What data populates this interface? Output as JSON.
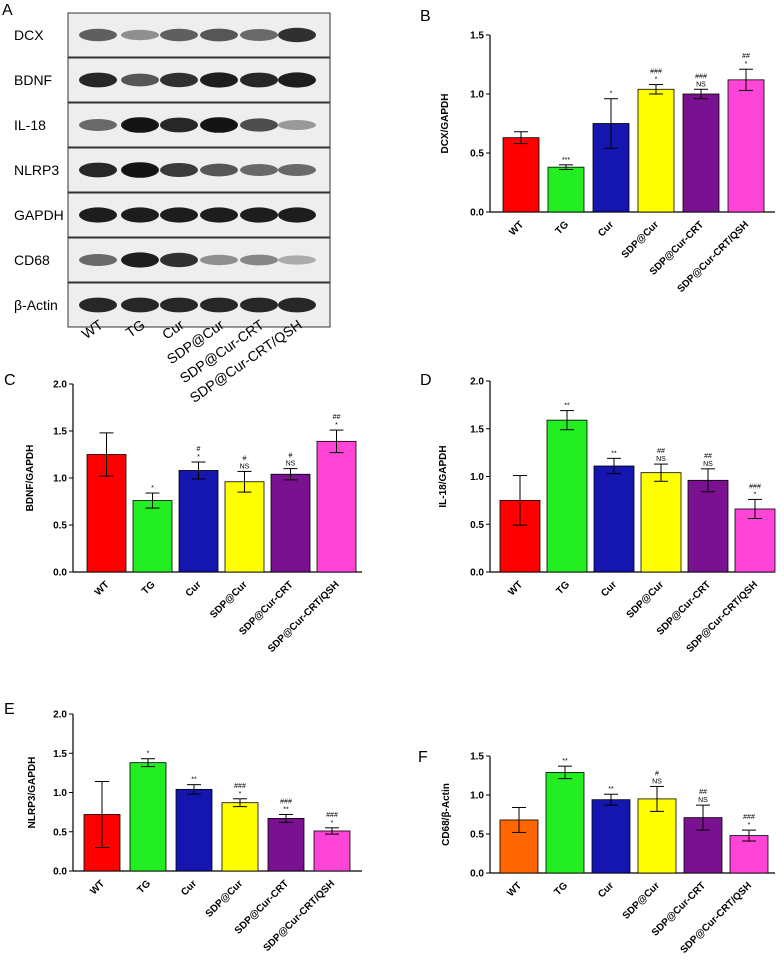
{
  "blot": {
    "panel_label": "A",
    "rows": [
      {
        "label": "DCX",
        "intensity": [
          0.55,
          0.3,
          0.55,
          0.6,
          0.5,
          0.8
        ]
      },
      {
        "label": "BDNF",
        "intensity": [
          0.85,
          0.6,
          0.8,
          0.9,
          0.85,
          0.9
        ]
      },
      {
        "label": "IL-18",
        "intensity": [
          0.5,
          0.95,
          0.85,
          0.95,
          0.65,
          0.25
        ]
      },
      {
        "label": "NLRP3",
        "intensity": [
          0.85,
          0.95,
          0.75,
          0.6,
          0.5,
          0.5
        ]
      },
      {
        "label": "GAPDH",
        "intensity": [
          0.9,
          0.9,
          0.9,
          0.9,
          0.9,
          0.9
        ]
      },
      {
        "label": "CD68",
        "intensity": [
          0.5,
          0.9,
          0.8,
          0.3,
          0.35,
          0.15
        ]
      },
      {
        "label": "β-Actin",
        "intensity": [
          0.85,
          0.85,
          0.85,
          0.85,
          0.85,
          0.85
        ]
      }
    ],
    "categories": [
      "WT",
      "TG",
      "Cur",
      "SDP@Cur",
      "SDP@Cur-CRT",
      "SDP@Cur-CRT/QSH"
    ]
  },
  "chart_data": [
    {
      "panel_label": "B",
      "type": "bar",
      "ylabel": "DCX/GAPDH",
      "ylim": [
        0,
        1.5
      ],
      "yticks": [
        "0.0",
        "0.5",
        "1.0",
        "1.5"
      ],
      "categories": [
        "WT",
        "TG",
        "Cur",
        "SDP@Cur",
        "SDP@Cur-CRT",
        "SDP@Cur-CRT/QSH"
      ],
      "values": [
        0.63,
        0.38,
        0.75,
        1.04,
        1.0,
        1.12
      ],
      "errors": [
        0.05,
        0.02,
        0.21,
        0.04,
        0.04,
        0.09
      ],
      "colors": [
        "#ff0000",
        "#22ee22",
        "#1515b0",
        "#ffff00",
        "#7a1190",
        "#ff44d8"
      ],
      "sig_upper": [
        "",
        "",
        "",
        "###",
        "###",
        "##"
      ],
      "sig_lower": [
        "",
        "***",
        "*",
        "*",
        "NS",
        "*"
      ]
    },
    {
      "panel_label": "C",
      "type": "bar",
      "ylabel": "BDNF/GAPDH",
      "ylim": [
        0,
        2.0
      ],
      "yticks": [
        "0.0",
        "0.5",
        "1.0",
        "1.5",
        "2.0"
      ],
      "categories": [
        "WT",
        "TG",
        "Cur",
        "SDP@Cur",
        "SDP@Cur-CRT",
        "SDP@Cur-CRT/QSH"
      ],
      "values": [
        1.25,
        0.76,
        1.08,
        0.96,
        1.04,
        1.39
      ],
      "errors": [
        0.23,
        0.08,
        0.09,
        0.11,
        0.06,
        0.12
      ],
      "colors": [
        "#ff0000",
        "#22ee22",
        "#1515b0",
        "#ffff00",
        "#7a1190",
        "#ff44d8"
      ],
      "sig_upper": [
        "",
        "",
        "#",
        "#",
        "#",
        "##"
      ],
      "sig_lower": [
        "",
        "*",
        "*",
        "NS",
        "NS",
        "*"
      ]
    },
    {
      "panel_label": "D",
      "type": "bar",
      "ylabel": "IL-18/GAPDH",
      "ylim": [
        0,
        2.0
      ],
      "yticks": [
        "0.0",
        "0.5",
        "1.0",
        "1.5",
        "2.0"
      ],
      "categories": [
        "WT",
        "TG",
        "Cur",
        "SDP@Cur",
        "SDP@Cur-CRT",
        "SDP@Cur-CRT/QSH"
      ],
      "values": [
        0.75,
        1.59,
        1.11,
        1.04,
        0.96,
        0.66
      ],
      "errors": [
        0.26,
        0.1,
        0.08,
        0.09,
        0.12,
        0.1
      ],
      "colors": [
        "#ff0000",
        "#22ee22",
        "#1515b0",
        "#ffff00",
        "#7a1190",
        "#ff44d8"
      ],
      "sig_upper": [
        "",
        "",
        "",
        "##",
        "##",
        "###"
      ],
      "sig_lower": [
        "",
        "**",
        "**",
        "NS",
        "NS",
        "*"
      ]
    },
    {
      "panel_label": "E",
      "type": "bar",
      "ylabel": "NLRP3/GAPDH",
      "ylim": [
        0,
        2.0
      ],
      "yticks": [
        "0.0",
        "0.5",
        "1.0",
        "1.5",
        "2.0"
      ],
      "categories": [
        "WT",
        "TG",
        "Cur",
        "SDP@Cur",
        "SDP@Cur-CRT",
        "SDP@Cur-CRT/QSH"
      ],
      "values": [
        0.72,
        1.38,
        1.04,
        0.87,
        0.67,
        0.51
      ],
      "errors": [
        0.42,
        0.05,
        0.06,
        0.05,
        0.05,
        0.04
      ],
      "colors": [
        "#ff0000",
        "#22ee22",
        "#1515b0",
        "#ffff00",
        "#7a1190",
        "#ff44d8"
      ],
      "sig_upper": [
        "",
        "",
        "",
        "###",
        "###",
        "###"
      ],
      "sig_lower": [
        "",
        "*",
        "**",
        "*",
        "**",
        "*"
      ]
    },
    {
      "panel_label": "F",
      "type": "bar",
      "ylabel": "CD68/β-Actin",
      "ylim": [
        0,
        1.5
      ],
      "yticks": [
        "0.0",
        "0.5",
        "1.0",
        "1.5"
      ],
      "categories": [
        "WT",
        "TG",
        "Cur",
        "SDP@Cur",
        "SDP@Cur-CRT",
        "SDP@Cur-CRT/QSH"
      ],
      "values": [
        0.68,
        1.29,
        0.94,
        0.95,
        0.71,
        0.48
      ],
      "errors": [
        0.16,
        0.08,
        0.07,
        0.16,
        0.16,
        0.07
      ],
      "colors": [
        "#ff6600",
        "#22ee22",
        "#1515b0",
        "#ffff00",
        "#7a1190",
        "#ff44d8"
      ],
      "sig_upper": [
        "",
        "",
        "",
        "#",
        "##",
        "###"
      ],
      "sig_lower": [
        "",
        "**",
        "**",
        "NS",
        "NS",
        "*"
      ]
    }
  ]
}
